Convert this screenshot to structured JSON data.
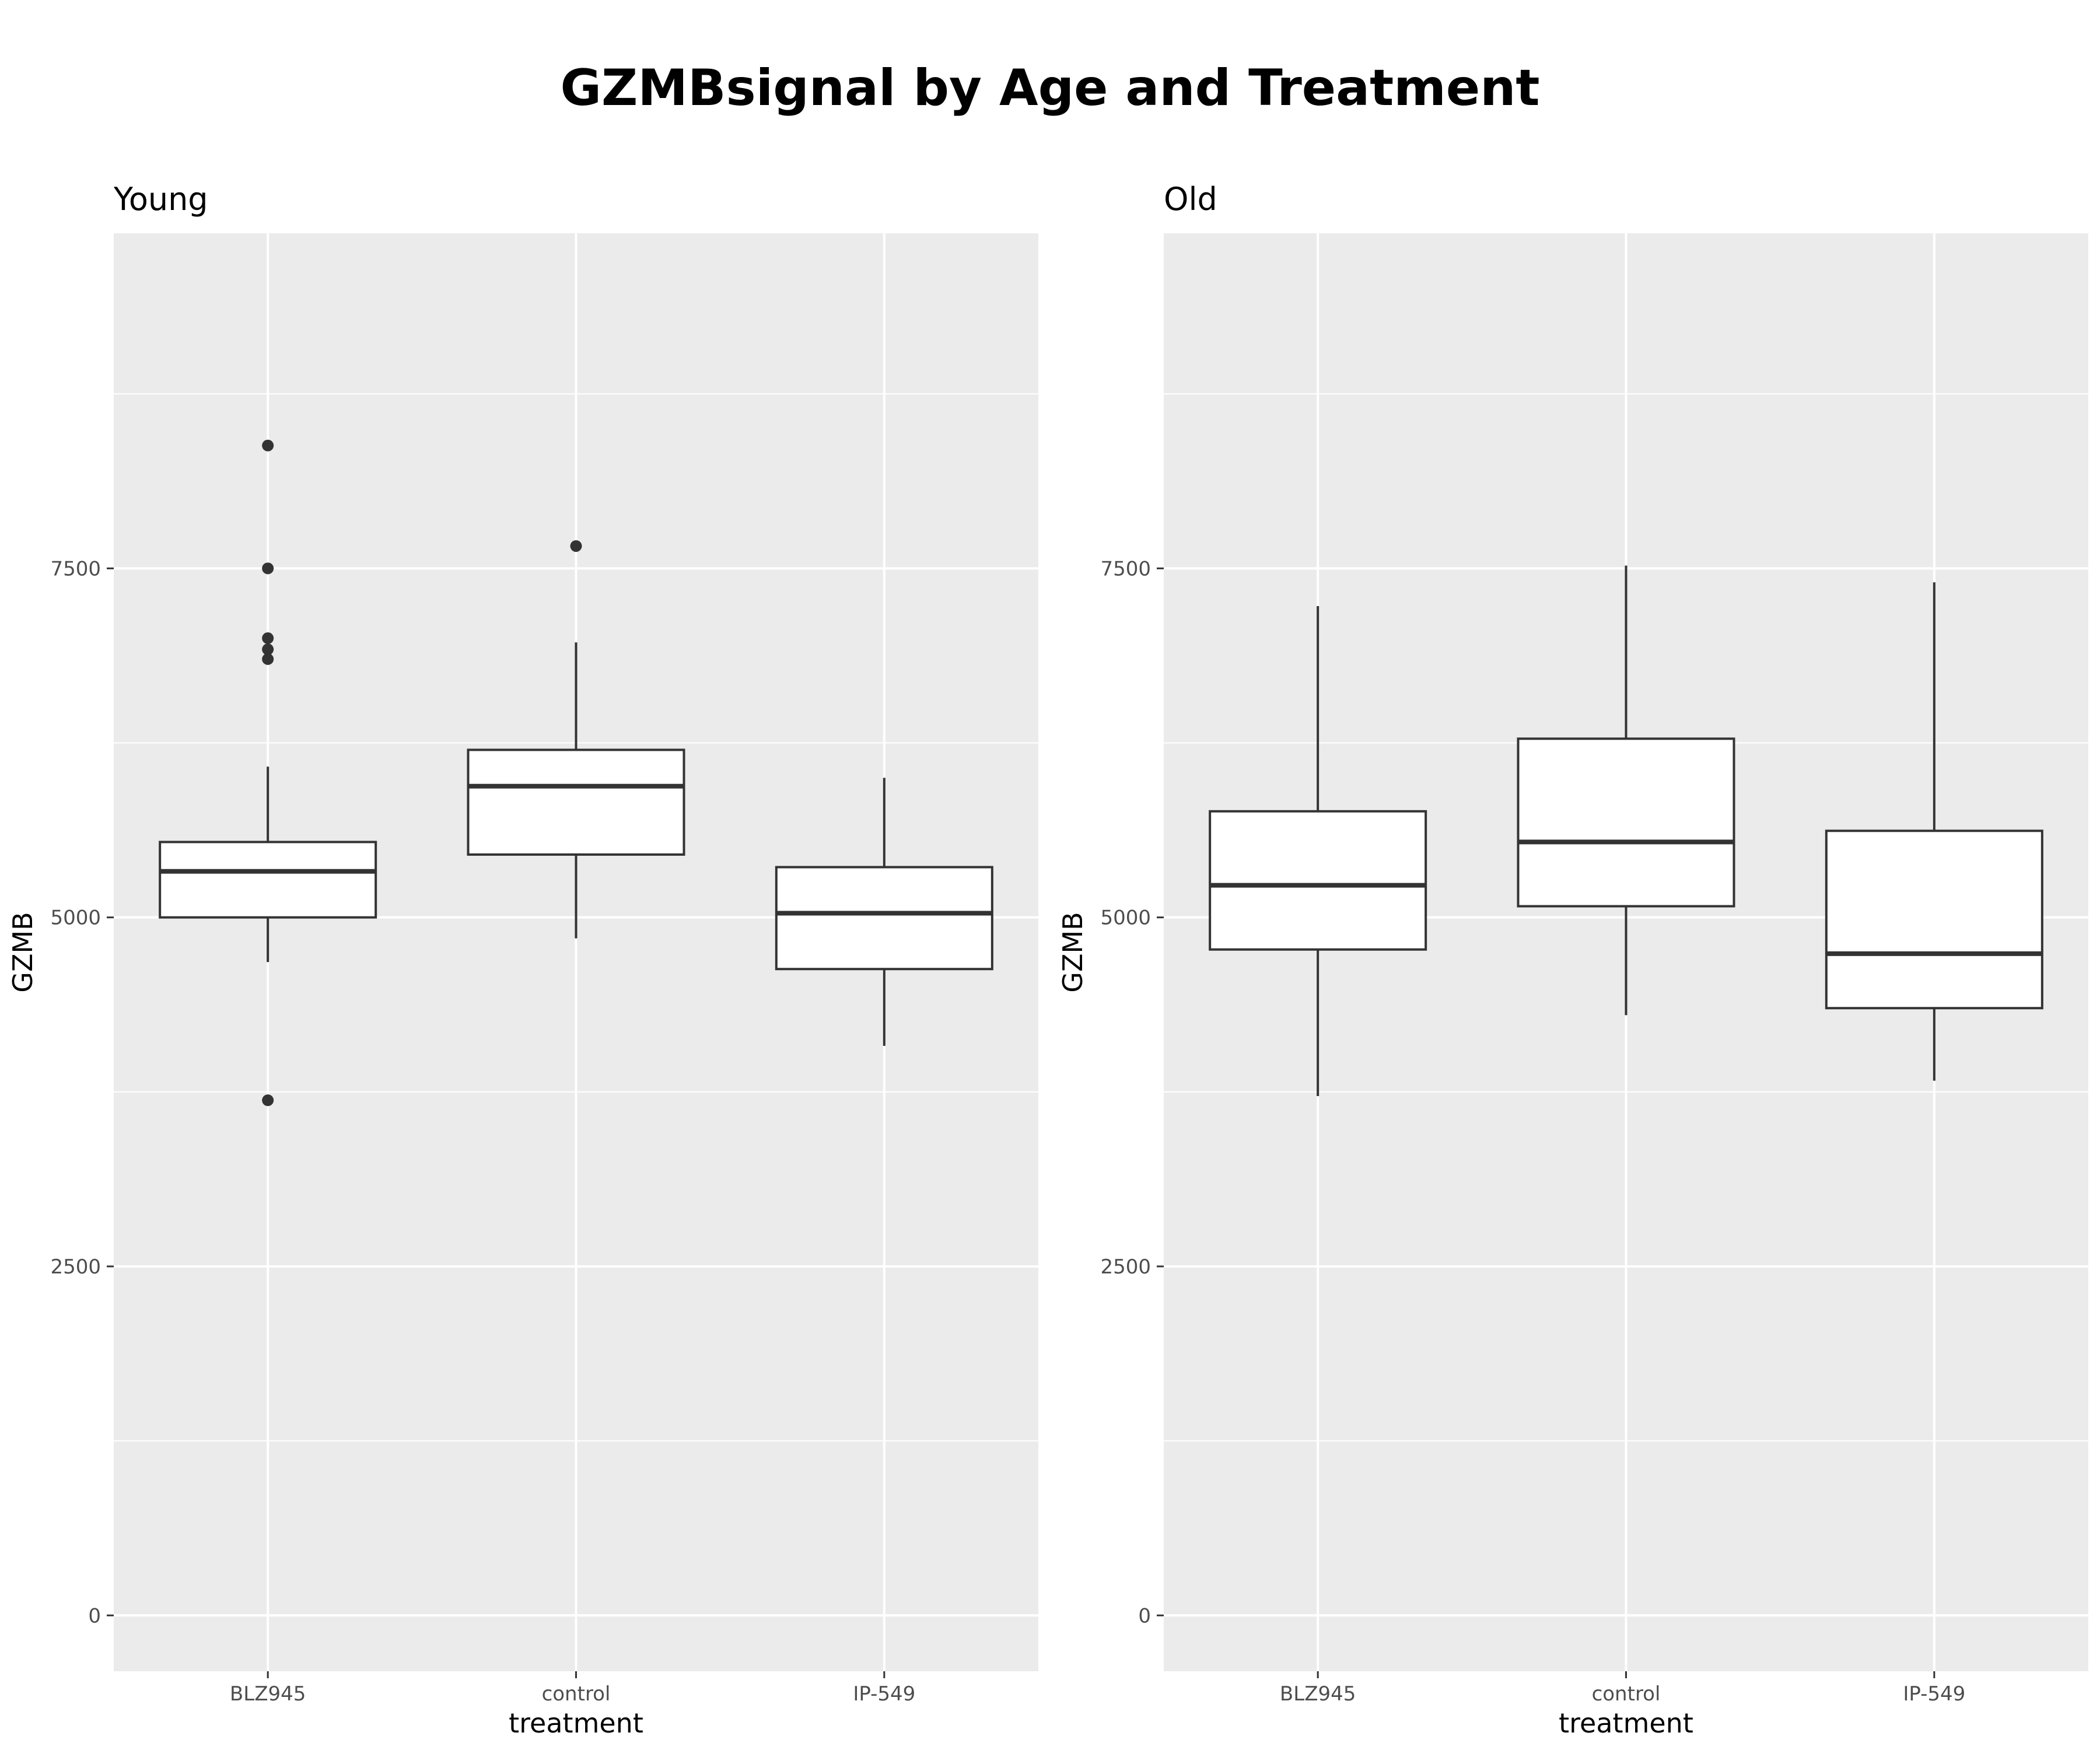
{
  "chart_data": {
    "type": "boxplot",
    "title": "GZMBsignal by Age and Treatment",
    "xlabel": "treatment",
    "ylabel": "GZMB",
    "categories": [
      "BLZ945",
      "control",
      "IP-549"
    ],
    "yticks": [
      0,
      2500,
      5000,
      7500
    ],
    "ylim": [
      -400,
      9900
    ],
    "panel_background": "#ebebeb",
    "grid_color": "#ffffff",
    "box_fill": "#ffffff",
    "line_color": "#333333",
    "panels": [
      {
        "name": "Young",
        "boxes": [
          {
            "category": "BLZ945",
            "whisker_low": 4680,
            "q1": 5000,
            "median": 5330,
            "q3": 5540,
            "whisker_high": 6080,
            "outliers": [
              8380,
              7500,
              7000,
              6920,
              6850,
              3690
            ]
          },
          {
            "category": "control",
            "whisker_low": 4850,
            "q1": 5450,
            "median": 5940,
            "q3": 6200,
            "whisker_high": 6970,
            "outliers": [
              7660
            ]
          },
          {
            "category": "IP-549",
            "whisker_low": 4080,
            "q1": 4630,
            "median": 5030,
            "q3": 5360,
            "whisker_high": 6000,
            "outliers": []
          }
        ]
      },
      {
        "name": "Old",
        "boxes": [
          {
            "category": "BLZ945",
            "whisker_low": 3720,
            "q1": 4770,
            "median": 5230,
            "q3": 5760,
            "whisker_high": 7230,
            "outliers": []
          },
          {
            "category": "control",
            "whisker_low": 4300,
            "q1": 5080,
            "median": 5540,
            "q3": 6280,
            "whisker_high": 7520,
            "outliers": []
          },
          {
            "category": "IP-549",
            "whisker_low": 3830,
            "q1": 4350,
            "median": 4740,
            "q3": 5620,
            "whisker_high": 7400,
            "outliers": []
          }
        ]
      }
    ]
  }
}
